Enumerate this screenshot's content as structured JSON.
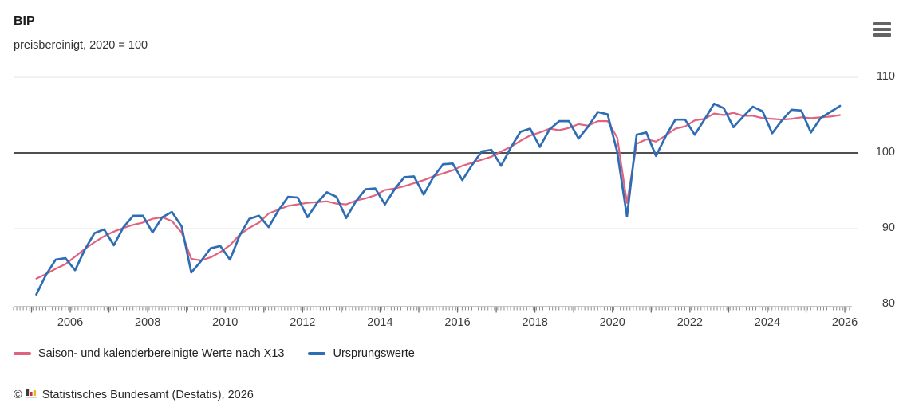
{
  "header": {
    "title": "BIP",
    "subtitle": "preisbereinigt, 2020 = 100"
  },
  "menu": {
    "icon": "hamburger-menu-icon"
  },
  "colors": {
    "adjusted_line": "#e0637e",
    "original_line": "#2e6cb3",
    "grid_light": "#e5e5e5",
    "reference_line": "#4f4f4f",
    "tick": "#8c8c8c",
    "axis_text": "#3b3b3b"
  },
  "legend": [
    {
      "label": "Saison- und kalenderbereinigte Werte nach X13",
      "color": "#e0637e"
    },
    {
      "label": "Ursprungswerte",
      "color": "#2e6cb3"
    }
  ],
  "footer": {
    "copyright": "©",
    "logo_icon": "destatis-bar-chart-logo",
    "text": "Statistisches Bundesamt (Destatis), 2026"
  },
  "chart_data": {
    "type": "line",
    "title": "BIP",
    "subtitle": "preisbereinigt, 2020 = 100",
    "frequency": "quarterly",
    "x_start": "2005-Q1",
    "x_end": "2025-Q4",
    "x_tick_years": [
      2006,
      2008,
      2010,
      2012,
      2014,
      2016,
      2018,
      2020,
      2022,
      2024,
      2026
    ],
    "x_tick_labels": [
      "2006",
      "2008",
      "2010",
      "2012",
      "2014",
      "2016",
      "2018",
      "2020",
      "2022",
      "2024",
      "2026"
    ],
    "y_ticks": [
      110,
      100,
      90,
      80
    ],
    "ylim": [
      80,
      111.5
    ],
    "reference_line_y": 100,
    "grid": "horizontal-only",
    "legend_position": "bottom",
    "series": [
      {
        "name": "Saison- und kalenderbereinigte Werte nach X13",
        "color": "#e0637e",
        "values": [
          83.4,
          84.0,
          84.7,
          85.3,
          86.3,
          87.3,
          88.2,
          89.0,
          89.6,
          90.1,
          90.5,
          90.8,
          91.3,
          91.5,
          91.0,
          89.5,
          86.0,
          85.8,
          86.2,
          86.9,
          87.8,
          89.2,
          90.1,
          90.8,
          92.0,
          92.5,
          93.0,
          93.2,
          93.4,
          93.5,
          93.6,
          93.3,
          93.2,
          93.7,
          94.0,
          94.4,
          95.1,
          95.3,
          95.6,
          96.0,
          96.4,
          96.9,
          97.3,
          97.7,
          98.3,
          98.7,
          99.1,
          99.5,
          100.2,
          100.8,
          101.6,
          102.3,
          102.7,
          103.2,
          103.0,
          103.3,
          103.8,
          103.6,
          104.2,
          104.2,
          102.0,
          93.4,
          101.2,
          101.8,
          101.5,
          102.3,
          103.2,
          103.5,
          104.3,
          104.5,
          105.2,
          105.0,
          105.3,
          104.9,
          104.9,
          104.6,
          104.5,
          104.4,
          104.5,
          104.7,
          104.6,
          104.7,
          104.8,
          105.0
        ]
      },
      {
        "name": "Ursprungswerte",
        "color": "#2e6cb3",
        "values": [
          81.3,
          83.9,
          85.9,
          86.1,
          84.5,
          87.2,
          89.4,
          89.9,
          87.8,
          90.2,
          91.7,
          91.7,
          89.5,
          91.5,
          92.2,
          90.3,
          84.2,
          85.7,
          87.4,
          87.7,
          85.9,
          89.1,
          91.3,
          91.7,
          90.2,
          92.4,
          94.2,
          94.1,
          91.5,
          93.4,
          94.8,
          94.2,
          91.4,
          93.6,
          95.2,
          95.3,
          93.2,
          95.2,
          96.8,
          96.9,
          94.5,
          96.8,
          98.5,
          98.6,
          96.4,
          98.4,
          100.2,
          100.4,
          98.3,
          100.7,
          102.8,
          103.2,
          100.8,
          103.1,
          104.2,
          104.2,
          101.9,
          103.5,
          105.4,
          105.1,
          100.1,
          91.6,
          102.4,
          102.7,
          99.6,
          102.2,
          104.4,
          104.4,
          102.4,
          104.4,
          106.5,
          105.9,
          103.4,
          104.8,
          106.1,
          105.5,
          102.6,
          104.3,
          105.7,
          105.6,
          102.7,
          104.6,
          105.4,
          106.2
        ]
      }
    ]
  }
}
